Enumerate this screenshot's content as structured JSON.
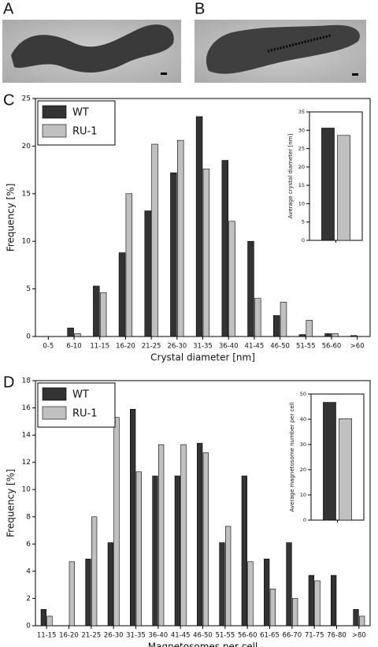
{
  "panel_labels": [
    "A",
    "B",
    "C",
    "D"
  ],
  "chart_data": [
    {
      "type": "bar",
      "xlabel": "Crystal diameter [nm]",
      "ylabel": "Frequency [%]",
      "categories": [
        "0-5",
        "6-10",
        "11-15",
        "16-20",
        "21-25",
        "26-30",
        "31-35",
        "36-40",
        "41-45",
        "46-50",
        "51-55",
        "56-60",
        ">60"
      ],
      "series": [
        {
          "name": "WT",
          "color": "#333333",
          "values": [
            0,
            0.9,
            5.3,
            8.8,
            13.2,
            17.2,
            23.1,
            18.5,
            10.0,
            2.2,
            0.2,
            0.3,
            0.1
          ]
        },
        {
          "name": "RU-1",
          "color": "#c0c0c0",
          "values": [
            0,
            0.3,
            4.6,
            15.0,
            20.2,
            20.6,
            17.6,
            12.1,
            4.0,
            3.6,
            1.7,
            0.3,
            0
          ]
        }
      ],
      "ylim": [
        0,
        25
      ],
      "yticks": [
        0,
        5,
        10,
        15,
        20,
        25
      ],
      "legend": "upper left"
    },
    {
      "type": "inset-bar",
      "ylabel": "Average crystal diameter [nm]",
      "values": [
        30.6,
        28.6
      ],
      "colors": [
        "#333333",
        "#c0c0c0"
      ],
      "ylim": [
        0,
        35
      ],
      "yticks": [
        0,
        5,
        10,
        15,
        20,
        25,
        30,
        35
      ]
    },
    {
      "type": "bar",
      "xlabel": "Magnetosomes per cell",
      "ylabel": "Frequency [%]",
      "categories": [
        "11-15",
        "16-20",
        "21-25",
        "26-30",
        "31-35",
        "36-40",
        "41-45",
        "46-50",
        "51-55",
        "56-60",
        "61-65",
        "66-70",
        "71-75",
        "76-80",
        ">80"
      ],
      "series": [
        {
          "name": "WT",
          "color": "#333333",
          "values": [
            1.2,
            0,
            4.9,
            6.1,
            15.9,
            11.0,
            11.0,
            13.4,
            6.1,
            11.0,
            4.9,
            6.1,
            3.7,
            3.7,
            1.2
          ]
        },
        {
          "name": "RU-1",
          "color": "#c0c0c0",
          "values": [
            0.7,
            4.7,
            8.0,
            15.3,
            11.3,
            13.3,
            13.3,
            12.7,
            7.3,
            4.7,
            2.7,
            2.0,
            3.3,
            0,
            0.7
          ]
        }
      ],
      "ylim": [
        0,
        18
      ],
      "yticks": [
        0,
        2,
        4,
        6,
        8,
        10,
        12,
        14,
        16,
        18
      ],
      "legend": "upper left"
    },
    {
      "type": "inset-bar",
      "ylabel": "Average magnetosome number per cell",
      "values": [
        46.7,
        40.2
      ],
      "colors": [
        "#333333",
        "#c0c0c0"
      ],
      "ylim": [
        0,
        50
      ],
      "yticks": [
        0,
        10,
        20,
        30,
        40,
        50
      ]
    }
  ]
}
